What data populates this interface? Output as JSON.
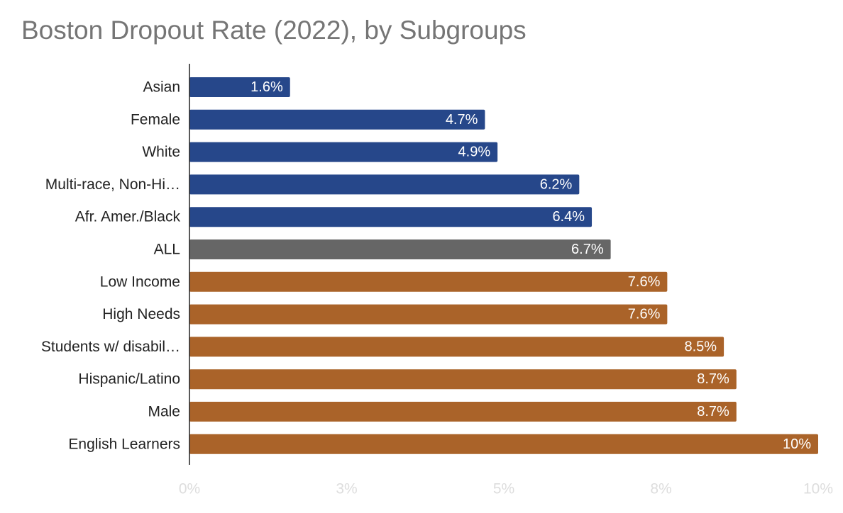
{
  "chart_data": {
    "type": "bar",
    "orientation": "horizontal",
    "title": "Boston Dropout Rate (2022), by Subgroups",
    "xlabel": "",
    "ylabel": "",
    "xlim": [
      0,
      10
    ],
    "x_ticks": [
      0,
      2.5,
      5,
      7.5,
      10
    ],
    "x_tick_labels": [
      "0%",
      "3%",
      "5%",
      "8%",
      "10%"
    ],
    "grid": false,
    "legend": "none",
    "categories": [
      "Asian",
      "Female",
      "White",
      "Multi-race, Non-Hi…",
      "Afr. Amer./Black",
      "ALL",
      "Low Income",
      "High Needs",
      "Students w/ disabil…",
      "Hispanic/Latino",
      "Male",
      "English Learners"
    ],
    "values": [
      1.6,
      4.7,
      4.9,
      6.2,
      6.4,
      6.7,
      7.6,
      7.6,
      8.5,
      8.7,
      8.7,
      10
    ],
    "data_labels": [
      "1.6%",
      "4.7%",
      "4.9%",
      "6.2%",
      "6.4%",
      "6.7%",
      "7.6%",
      "7.6%",
      "8.5%",
      "8.7%",
      "8.7%",
      "10%"
    ],
    "bar_colors": [
      "#26478a",
      "#26478a",
      "#26478a",
      "#26478a",
      "#26478a",
      "#666666",
      "#aa6329",
      "#aa6329",
      "#aa6329",
      "#aa6329",
      "#aa6329",
      "#aa6329"
    ],
    "axis_color": "#222222",
    "tick_label_color": "#dddddd"
  }
}
